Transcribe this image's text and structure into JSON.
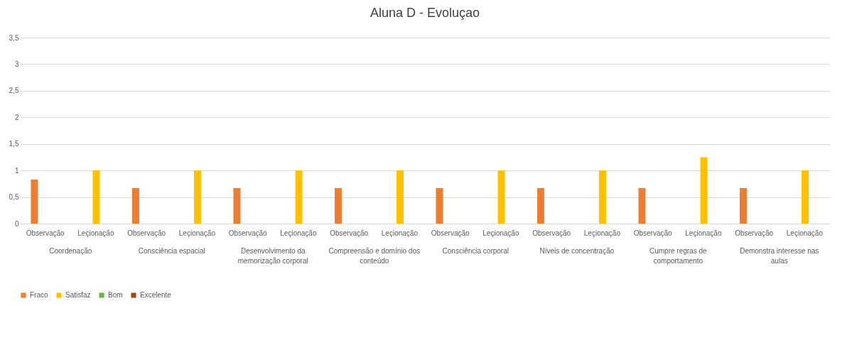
{
  "chart_data": {
    "type": "bar",
    "title": "Aluna D - Evoluçao",
    "categories": [
      "Observação",
      "Leçionação",
      "Observação",
      "Leçionação",
      "Observação",
      "Leçionação",
      "Observação",
      "Leçionação",
      "Observação",
      "Leçionação",
      "Observação",
      "Leçionação",
      "Observação",
      "Leçionação",
      "Observação",
      "Leçionação"
    ],
    "series": [
      {
        "name": "Fraco",
        "color": "#ed7d31",
        "values": [
          0.83,
          null,
          0.67,
          null,
          0.67,
          null,
          0.67,
          null,
          0.67,
          null,
          0.67,
          null,
          0.67,
          null,
          0.67,
          null
        ]
      },
      {
        "name": "Satisfaz",
        "color": "#ffc000",
        "values": [
          null,
          1,
          null,
          1,
          null,
          1,
          null,
          1,
          null,
          1,
          null,
          1,
          null,
          1.25,
          null,
          1
        ]
      },
      {
        "name": "Bom",
        "color": "#70ad47",
        "values": [
          null,
          null,
          null,
          null,
          null,
          null,
          null,
          null,
          null,
          null,
          null,
          null,
          null,
          null,
          null,
          null
        ]
      },
      {
        "name": "Excelente",
        "color": "#9e480e",
        "values": [
          null,
          null,
          null,
          null,
          null,
          null,
          null,
          null,
          null,
          null,
          null,
          null,
          null,
          null,
          null,
          null
        ]
      }
    ],
    "annotations": [
      "Coordenação",
      "Consciência espacial",
      "Desenvolvimento da memorização corporal",
      "Compreensão e domínio dos conteúdo",
      "Consciência corporal",
      "Níveis de concentração",
      "Cumpre regras de comportamento",
      "Demonstra interesse nas aulas"
    ],
    "ylim": [
      0,
      3.5
    ],
    "yticks": [
      0,
      {
        "value": 0.5,
        "label": "0,5"
      },
      1,
      {
        "value": 1.5,
        "label": "1,5"
      },
      2,
      {
        "value": 2.5,
        "label": "2,5"
      },
      3,
      {
        "value": 3.5,
        "label": "3,5"
      }
    ],
    "grid": "y",
    "legend": "bottom"
  }
}
